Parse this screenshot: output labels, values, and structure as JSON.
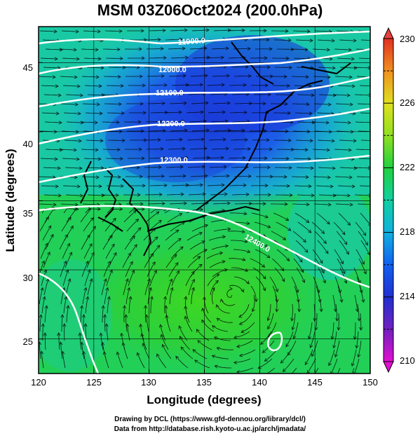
{
  "title": "MSM 03Z06Oct2024 (200.0hPa)",
  "x_axis": {
    "label": "Longitude (degrees)",
    "range": [
      120,
      150
    ],
    "ticks": [
      "120",
      "125",
      "130",
      "135",
      "140",
      "145",
      "150"
    ]
  },
  "y_axis": {
    "label": "Latitude  (degrees)",
    "range": [
      22.5,
      47.6
    ],
    "ticks": [
      "25",
      "30",
      "35",
      "40",
      "45"
    ]
  },
  "colorbar": {
    "range": [
      210,
      230
    ],
    "ticks": [
      "210",
      "214",
      "218",
      "222",
      "226",
      "230"
    ],
    "colors": [
      "#e010d0",
      "#5020b0",
      "#1030e0",
      "#10a0e0",
      "#10d0a0",
      "#20d040",
      "#a0e020",
      "#e0e020",
      "#f0a020",
      "#e03020"
    ]
  },
  "contours": [
    {
      "label": "11900.0"
    },
    {
      "label": "12000.0"
    },
    {
      "label": "12100.0"
    },
    {
      "label": "12200.0"
    },
    {
      "label": "12300.0"
    },
    {
      "label": "12400.0"
    }
  ],
  "credits": {
    "line1": "Drawing by DCL (https://www.gfd-dennou.org/library/dcl/)",
    "line2": "Data from http://database.rish.kyoto-u.ac.jp/arch/jmadata/"
  }
}
